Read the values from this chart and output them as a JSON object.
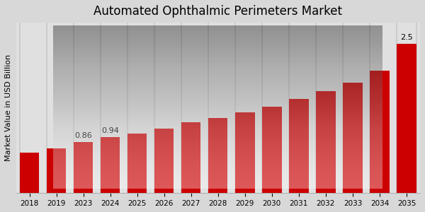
{
  "title": "Automated Ophthalmic Perimeters Market",
  "ylabel": "Market Value in USD Billion",
  "categories": [
    "2018",
    "2019",
    "2023",
    "2024",
    "2025",
    "2026",
    "2027",
    "2028",
    "2029",
    "2030",
    "2031",
    "2032",
    "2033",
    "2034",
    "2035"
  ],
  "values": [
    0.68,
    0.75,
    0.86,
    0.94,
    1.0,
    1.08,
    1.18,
    1.26,
    1.35,
    1.45,
    1.57,
    1.7,
    1.85,
    2.05,
    2.5
  ],
  "bar_color": "#cc0000",
  "bar_labels": {
    "2023": "0.86",
    "2024": "0.94",
    "2035": "2.5"
  },
  "bg_top": "#f0f0f0",
  "bg_bottom": "#d0d0d0",
  "title_fontsize": 12,
  "label_fontsize": 8,
  "tick_fontsize": 7.5,
  "ylim": [
    0,
    2.85
  ],
  "bottom_strip_color": "#cc0000",
  "separator_color": "#c8c8c8"
}
